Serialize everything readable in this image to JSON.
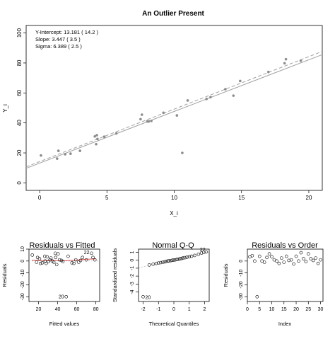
{
  "chart_data": [
    {
      "type": "scatter",
      "title": "An Outlier Present",
      "xlabel": "X_i",
      "ylabel": "Y_i",
      "xlim": [
        -1,
        21
      ],
      "ylim": [
        -5,
        105
      ],
      "xticks": [
        "0",
        "5",
        "10",
        "15",
        "20"
      ],
      "yticks": [
        "0",
        "20",
        "40",
        "60",
        "80",
        "100"
      ],
      "annotations": [
        "Y-Intercept: 13.181   ( 14.2 )",
        "Slope: 3.447   ( 3.5 )",
        "Sigma: 6.389   ( 2.5 )"
      ],
      "fit_line": {
        "intercept": 13.181,
        "slope": 3.447,
        "color": "#a0a0a0"
      },
      "true_line": {
        "intercept": 14.2,
        "slope": 3.5,
        "style": "dashed",
        "color": "#a0a0a0"
      },
      "point_color": "#8c8c8c",
      "points": [
        [
          0.1,
          18.3
        ],
        [
          1.3,
          16.2
        ],
        [
          1.4,
          21.4
        ],
        [
          1.9,
          19.1
        ],
        [
          2.3,
          19.5
        ],
        [
          3.0,
          21.4
        ],
        [
          4.1,
          31.0
        ],
        [
          4.2,
          25.8
        ],
        [
          4.3,
          29.3
        ],
        [
          4.25,
          31.8
        ],
        [
          4.8,
          30.8
        ],
        [
          5.7,
          33.0
        ],
        [
          7.5,
          42.5
        ],
        [
          7.6,
          45.5
        ],
        [
          8.0,
          41.0
        ],
        [
          8.1,
          41.0
        ],
        [
          8.3,
          41.3
        ],
        [
          9.2,
          46.8
        ],
        [
          10.2,
          45.0
        ],
        [
          10.6,
          20.0
        ],
        [
          11.0,
          55.0
        ],
        [
          12.4,
          56.0
        ],
        [
          12.7,
          57.2
        ],
        [
          13.8,
          62.5
        ],
        [
          14.4,
          58.2
        ],
        [
          14.9,
          68.0
        ],
        [
          17.0,
          74.0
        ],
        [
          18.2,
          79.8
        ],
        [
          18.3,
          82.5
        ],
        [
          19.4,
          81.5
        ]
      ]
    },
    {
      "type": "scatter",
      "title": "Residuals vs Fitted",
      "xlabel": "Fitted values",
      "ylabel": "Residuals",
      "xlim": [
        10,
        84
      ],
      "ylim": [
        -34,
        10
      ],
      "xticks": [
        "20",
        "40",
        "60",
        "80"
      ],
      "yticks": [
        "-30",
        "-20",
        "-10",
        "0",
        "10"
      ],
      "smoother_color": "#e05050",
      "labels": [
        {
          "x": 49,
          "y": -30,
          "text": "20"
        },
        {
          "x": 75.5,
          "y": 7,
          "text": "22"
        }
      ],
      "points": [
        [
          13.5,
          5.0
        ],
        [
          18.0,
          -1.0
        ],
        [
          19.0,
          3.0
        ],
        [
          21.0,
          2.0
        ],
        [
          22.0,
          -2.0
        ],
        [
          24.0,
          -1.5
        ],
        [
          26.5,
          4.0
        ],
        [
          27.0,
          0.0
        ],
        [
          28.0,
          -2.0
        ],
        [
          29.0,
          3.5
        ],
        [
          30.5,
          -0.5
        ],
        [
          32.0,
          1.0
        ],
        [
          33.0,
          2.5
        ],
        [
          34.5,
          0.0
        ],
        [
          36.0,
          -1.0
        ],
        [
          37.5,
          6.5
        ],
        [
          38.0,
          3.0
        ],
        [
          39.0,
          -3.0
        ],
        [
          40.5,
          6.0
        ],
        [
          42.0,
          1.0
        ],
        [
          44.0,
          0.5
        ],
        [
          45.5,
          -0.5
        ],
        [
          49.0,
          -30.0
        ],
        [
          51.0,
          4.0
        ],
        [
          55.0,
          -1.5
        ],
        [
          57.0,
          -2.0
        ],
        [
          59.0,
          1.0
        ],
        [
          62.0,
          -1.0
        ],
        [
          64.0,
          0.5
        ],
        [
          66.0,
          3.0
        ],
        [
          70.0,
          1.0
        ],
        [
          75.5,
          6.5
        ],
        [
          77.0,
          3.0
        ],
        [
          79.0,
          1.0
        ]
      ]
    },
    {
      "type": "scatter",
      "title": "Normal Q-Q",
      "xlabel": "Theoretical Quantiles",
      "ylabel": "Standardized residuals",
      "xlim": [
        -2.3,
        2.3
      ],
      "ylim": [
        -5.2,
        1.4
      ],
      "xticks": [
        "-2",
        "-1",
        "0",
        "1",
        "2"
      ],
      "yticks": [
        "-4",
        "-3",
        "-2",
        "-1",
        "0",
        "1"
      ],
      "labels": [
        {
          "x": -2.0,
          "y": -4.6,
          "text": "20"
        },
        {
          "x": 2.1,
          "y": 1.05,
          "text": "22"
        }
      ],
      "points": [
        [
          -2.0,
          -4.6
        ],
        [
          -1.6,
          -0.6
        ],
        [
          -1.35,
          -0.5
        ],
        [
          -1.15,
          -0.4
        ],
        [
          -1.0,
          -0.35
        ],
        [
          -0.85,
          -0.3
        ],
        [
          -0.72,
          -0.25
        ],
        [
          -0.6,
          -0.2
        ],
        [
          -0.5,
          -0.15
        ],
        [
          -0.4,
          -0.1
        ],
        [
          -0.3,
          -0.08
        ],
        [
          -0.2,
          -0.05
        ],
        [
          -0.1,
          0.0
        ],
        [
          0.0,
          0.02
        ],
        [
          0.1,
          0.05
        ],
        [
          0.2,
          0.1
        ],
        [
          0.3,
          0.12
        ],
        [
          0.4,
          0.18
        ],
        [
          0.5,
          0.22
        ],
        [
          0.6,
          0.28
        ],
        [
          0.72,
          0.32
        ],
        [
          0.85,
          0.38
        ],
        [
          1.0,
          0.45
        ],
        [
          1.15,
          0.5
        ],
        [
          1.35,
          0.6
        ],
        [
          1.6,
          0.75
        ],
        [
          1.8,
          0.9
        ],
        [
          1.95,
          1.0
        ],
        [
          2.1,
          1.05
        ]
      ],
      "reference_line": {
        "from": [
          -2.3,
          -0.95
        ],
        "to": [
          2.3,
          1.05
        ]
      }
    },
    {
      "type": "scatter",
      "title": "Residuals vs Order",
      "xlabel": "Index",
      "ylabel": "Residuals",
      "xlim": [
        0,
        31
      ],
      "ylim": [
        -34,
        10
      ],
      "xticks": [
        "0",
        "5",
        "10",
        "15",
        "20",
        "25",
        "30"
      ],
      "yticks": [
        "-30",
        "-20",
        "-10",
        "0"
      ],
      "points": [
        [
          1,
          3.5
        ],
        [
          2,
          4.5
        ],
        [
          3,
          0.0
        ],
        [
          4,
          -30.0
        ],
        [
          5,
          4.0
        ],
        [
          6,
          0.0
        ],
        [
          7,
          -1.0
        ],
        [
          8,
          3.0
        ],
        [
          9,
          6.0
        ],
        [
          10,
          3.5
        ],
        [
          11,
          1.0
        ],
        [
          12,
          0.0
        ],
        [
          13,
          -2.0
        ],
        [
          14,
          2.5
        ],
        [
          15,
          -1.0
        ],
        [
          16,
          4.0
        ],
        [
          17,
          0.5
        ],
        [
          18,
          1.0
        ],
        [
          19,
          -2.5
        ],
        [
          20,
          4.0
        ],
        [
          21,
          0.0
        ],
        [
          22,
          7.0
        ],
        [
          23,
          2.0
        ],
        [
          24,
          -0.5
        ],
        [
          25,
          6.0
        ],
        [
          26,
          2.0
        ],
        [
          27,
          0.5
        ],
        [
          28,
          2.5
        ],
        [
          29,
          -2.0
        ],
        [
          30,
          1.0
        ]
      ]
    }
  ]
}
